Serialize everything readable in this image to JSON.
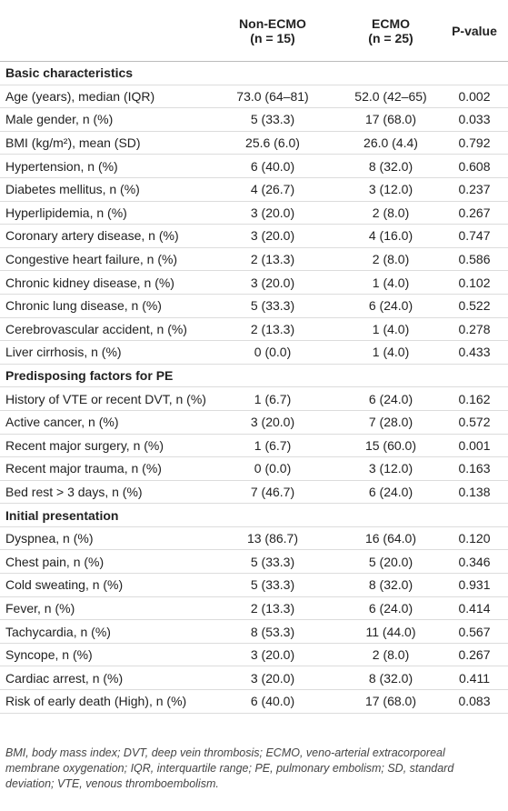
{
  "header": {
    "columns": [
      "",
      "Non-ECMO",
      "ECMO",
      "P-value"
    ],
    "subcolumns": [
      "",
      "(n = 15)",
      "(n = 25)",
      ""
    ]
  },
  "sections": [
    {
      "title": "Basic characteristics",
      "rows": [
        [
          "Age (years), median (IQR)",
          "73.0 (64–81)",
          "52.0 (42–65)",
          "0.002"
        ],
        [
          "Male gender, n (%)",
          "5 (33.3)",
          "17 (68.0)",
          "0.033"
        ],
        [
          "BMI (kg/m²), mean (SD)",
          "25.6 (6.0)",
          "26.0 (4.4)",
          "0.792"
        ],
        [
          "Hypertension, n (%)",
          "6 (40.0)",
          "8 (32.0)",
          "0.608"
        ],
        [
          "Diabetes mellitus, n (%)",
          "4 (26.7)",
          "3 (12.0)",
          "0.237"
        ],
        [
          "Hyperlipidemia, n (%)",
          "3 (20.0)",
          "2 (8.0)",
          "0.267"
        ],
        [
          "Coronary artery disease, n (%)",
          "3 (20.0)",
          "4 (16.0)",
          "0.747"
        ],
        [
          "Congestive heart failure, n (%)",
          "2 (13.3)",
          "2 (8.0)",
          "0.586"
        ],
        [
          "Chronic kidney disease, n (%)",
          "3 (20.0)",
          "1 (4.0)",
          "0.102"
        ],
        [
          "Chronic lung disease, n (%)",
          "5 (33.3)",
          "6 (24.0)",
          "0.522"
        ],
        [
          "Cerebrovascular accident, n (%)",
          "2 (13.3)",
          "1 (4.0)",
          "0.278"
        ],
        [
          "Liver cirrhosis, n (%)",
          "0 (0.0)",
          "1 (4.0)",
          "0.433"
        ]
      ]
    },
    {
      "title": "Predisposing factors for PE",
      "rows": [
        [
          "History of VTE or recent DVT, n (%)",
          "1 (6.7)",
          "6 (24.0)",
          "0.162"
        ],
        [
          "Active cancer, n (%)",
          "3 (20.0)",
          "7 (28.0)",
          "0.572"
        ],
        [
          "Recent major surgery, n (%)",
          "1 (6.7)",
          "15 (60.0)",
          "0.001"
        ],
        [
          "Recent major trauma, n (%)",
          "0 (0.0)",
          "3 (12.0)",
          "0.163"
        ],
        [
          "Bed rest > 3 days, n (%)",
          "7 (46.7)",
          "6 (24.0)",
          "0.138"
        ]
      ]
    },
    {
      "title": "Initial presentation",
      "rows": [
        [
          "Dyspnea, n (%)",
          "13 (86.7)",
          "16 (64.0)",
          "0.120"
        ],
        [
          "Chest pain, n (%)",
          "5 (33.3)",
          "5 (20.0)",
          "0.346"
        ],
        [
          "Cold sweating, n (%)",
          "5 (33.3)",
          "8 (32.0)",
          "0.931"
        ],
        [
          "Fever, n (%)",
          "2 (13.3)",
          "6 (24.0)",
          "0.414"
        ],
        [
          "Tachycardia, n (%)",
          "8 (53.3)",
          "11 (44.0)",
          "0.567"
        ],
        [
          "Syncope, n (%)",
          "3 (20.0)",
          "2 (8.0)",
          "0.267"
        ],
        [
          "Cardiac arrest, n (%)",
          "3 (20.0)",
          "8 (32.0)",
          "0.411"
        ],
        [
          "Risk of early death (High), n (%)",
          "6 (40.0)",
          "17 (68.0)",
          "0.083"
        ]
      ]
    }
  ],
  "footnote": "BMI, body mass index; DVT, deep vein thrombosis; ECMO, veno-arterial extracorporeal membrane oxygenation; IQR, interquartile range; PE, pulmonary embolism; SD, standard deviation; VTE, venous thromboembolism."
}
